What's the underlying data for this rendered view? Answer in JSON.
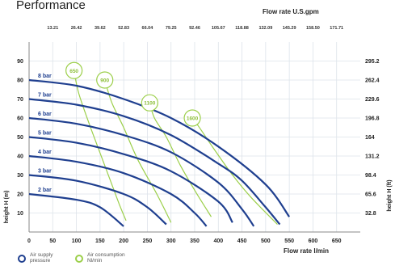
{
  "chart_data": {
    "type": "line",
    "title": "Performance",
    "top_axis_label": "Flow rate U.S.gpm",
    "top_ticks": [
      "13.21",
      "26.42",
      "39.62",
      "52.83",
      "66.04",
      "79.25",
      "92.46",
      "105.67",
      "118.88",
      "132.09",
      "145.29",
      "158.50",
      "171.71"
    ],
    "xlabel": "Flow rate  l/min",
    "x_ticks": [
      "0",
      "50",
      "100",
      "150",
      "200",
      "250",
      "300",
      "350",
      "400",
      "450",
      "500",
      "550",
      "600",
      "650"
    ],
    "xlim": [
      0,
      700
    ],
    "ylabel_left": "height  H (m)",
    "y_ticks_left": [
      "10",
      "20",
      "30",
      "40",
      "50",
      "60",
      "70",
      "80",
      "90"
    ],
    "ylim": [
      0,
      100
    ],
    "ylabel_right": "height  H (ft)",
    "y_ticks_right": [
      "32.8",
      "65.6",
      "98.4",
      "131.2",
      "164",
      "196.8",
      "229.6",
      "262.4",
      "295.2"
    ],
    "grid": true,
    "pressure_curves": [
      {
        "label": "8 bar",
        "points": [
          [
            0,
            80
          ],
          [
            100,
            77
          ],
          [
            200,
            70
          ],
          [
            300,
            60
          ],
          [
            400,
            45
          ],
          [
            500,
            25
          ],
          [
            550,
            8
          ]
        ]
      },
      {
        "label": "7 bar",
        "points": [
          [
            0,
            70
          ],
          [
            100,
            67
          ],
          [
            200,
            61
          ],
          [
            300,
            51
          ],
          [
            400,
            36
          ],
          [
            450,
            27
          ],
          [
            500,
            13
          ],
          [
            530,
            4
          ]
        ]
      },
      {
        "label": "6 bar",
        "points": [
          [
            0,
            60
          ],
          [
            100,
            57
          ],
          [
            200,
            51
          ],
          [
            300,
            42
          ],
          [
            400,
            26
          ],
          [
            450,
            12
          ],
          [
            475,
            3
          ]
        ]
      },
      {
        "label": "5 bar",
        "points": [
          [
            0,
            50
          ],
          [
            100,
            47
          ],
          [
            200,
            41
          ],
          [
            300,
            32
          ],
          [
            400,
            16
          ],
          [
            430,
            5
          ]
        ]
      },
      {
        "label": "4 bar",
        "points": [
          [
            0,
            40
          ],
          [
            100,
            37
          ],
          [
            200,
            31
          ],
          [
            300,
            20
          ],
          [
            350,
            10
          ],
          [
            375,
            3
          ]
        ]
      },
      {
        "label": "3 bar",
        "points": [
          [
            0,
            30
          ],
          [
            100,
            27
          ],
          [
            200,
            20
          ],
          [
            250,
            13
          ],
          [
            290,
            4
          ]
        ]
      },
      {
        "label": "2 bar",
        "points": [
          [
            0,
            20
          ],
          [
            100,
            17
          ],
          [
            150,
            13
          ],
          [
            200,
            3
          ]
        ]
      }
    ],
    "air_consumption_curves": [
      {
        "label": "650",
        "points": [
          [
            95,
            85
          ],
          [
            105,
            73
          ],
          [
            130,
            55
          ],
          [
            160,
            35
          ],
          [
            190,
            15
          ],
          [
            205,
            6
          ]
        ]
      },
      {
        "label": "900",
        "points": [
          [
            160,
            80
          ],
          [
            175,
            68
          ],
          [
            200,
            55
          ],
          [
            230,
            38
          ],
          [
            270,
            20
          ],
          [
            300,
            5
          ]
        ]
      },
      {
        "label": "1100",
        "points": [
          [
            255,
            68
          ],
          [
            265,
            60
          ],
          [
            290,
            50
          ],
          [
            320,
            35
          ],
          [
            350,
            22
          ],
          [
            385,
            8
          ]
        ]
      },
      {
        "label": "1600",
        "points": [
          [
            345,
            60
          ],
          [
            360,
            55
          ],
          [
            390,
            44
          ],
          [
            430,
            30
          ],
          [
            470,
            18
          ],
          [
            525,
            4
          ]
        ]
      }
    ],
    "colors": {
      "pressure": "#1f3f8f",
      "air": "#9ccf4a",
      "grid": "#dde3ea"
    },
    "legend": [
      {
        "icon": "blue-circle",
        "text": "Air supply pressure"
      },
      {
        "icon": "green-circle",
        "text": "Air consumption Nl/min"
      }
    ]
  }
}
